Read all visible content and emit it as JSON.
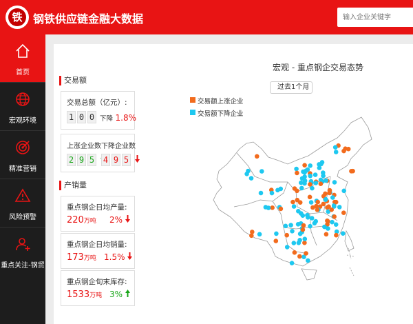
{
  "app": {
    "title": "钢铁供应链金融大数据",
    "logo_char": "铁"
  },
  "search": {
    "placeholder": "输入企业关键字"
  },
  "sidebar": {
    "items": [
      {
        "label": "首页",
        "icon": "home-icon",
        "active": true
      },
      {
        "label": "宏观环境",
        "icon": "globe-icon",
        "active": false
      },
      {
        "label": "精准营销",
        "icon": "target-icon",
        "active": false
      },
      {
        "label": "风险预警",
        "icon": "warning-icon",
        "active": false
      },
      {
        "label": "重点关注-钢贸",
        "icon": "user-add-icon",
        "active": false
      }
    ]
  },
  "trade": {
    "section_title": "交易额",
    "total_label": "交易总额（亿元）:",
    "total_digits": [
      "1",
      "0",
      "0"
    ],
    "total_change_label": "下降",
    "total_change_value": "1.8%",
    "updown_label": "上涨企业数下降企业数",
    "up_digits": [
      "2",
      "9",
      "5"
    ],
    "down_digits": [
      "4",
      "9",
      "5"
    ]
  },
  "production": {
    "section_title": "产销量",
    "items": [
      {
        "label": "重点钢企日均产量:",
        "value": "220",
        "unit": "万吨",
        "change": "2%",
        "direction": "down"
      },
      {
        "label": "重点钢企日均销量:",
        "value": "173",
        "unit": "万吨",
        "change": "1.5%",
        "direction": "down"
      },
      {
        "label": "重点钢企旬末库存:",
        "value": "1533",
        "unit": "万吨",
        "change": "3%",
        "direction": "up"
      }
    ]
  },
  "map": {
    "title": "宏观 - 重点钢企交易态势",
    "period": "过去1个月",
    "legend": [
      {
        "label": "交易额上涨企业",
        "color": "#f26b1d"
      },
      {
        "label": "交易额下降企业",
        "color": "#1ec8f0"
      }
    ]
  },
  "colors": {
    "accent": "#e81414",
    "sidebar": "#1d1d1d",
    "up": "#f26b1d",
    "down": "#1ec8f0"
  }
}
